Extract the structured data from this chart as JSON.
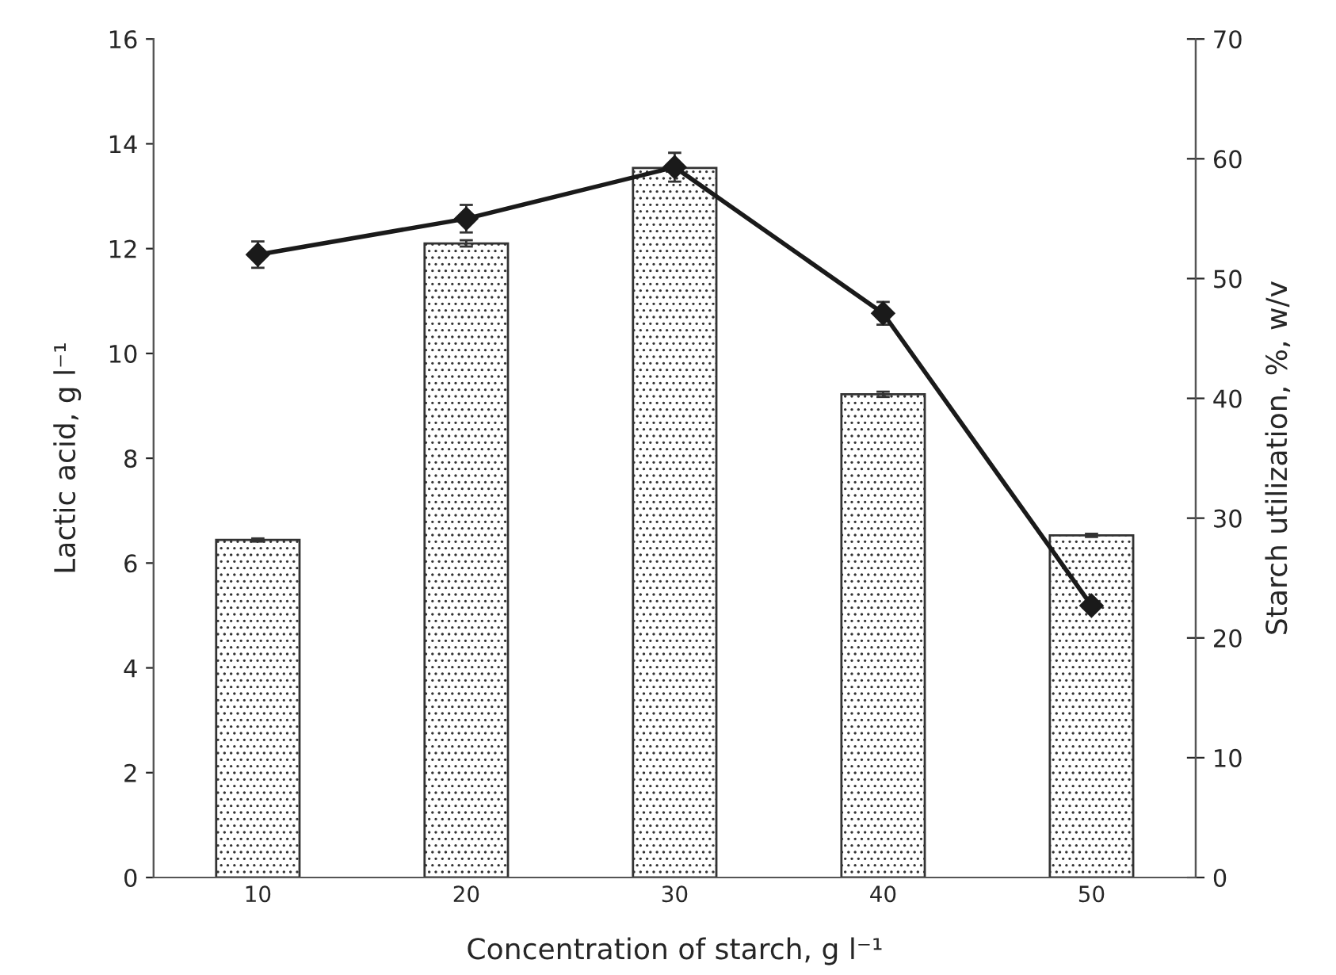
{
  "chart_data": {
    "type": "bar",
    "xlabel": "Concentration of starch, g l⁻¹",
    "ylabel": "Lactic acid, g l⁻¹",
    "y2label": "Starch utilization, %, w/v",
    "categories": [
      "10",
      "20",
      "30",
      "40",
      "50"
    ],
    "series": [
      {
        "color": "#333333",
        "values": [
          6.44,
          12.1,
          13.54,
          9.22,
          6.53
        ],
        "errors": [
          0.03,
          0.06,
          null,
          0.05,
          0.03
        ]
      },
      {
        "type": "line",
        "axis": "y2",
        "color": "#1a1a1a",
        "marker": "diamond",
        "values": [
          52.0,
          55.0,
          59.3,
          47.1,
          22.7
        ],
        "errors": [
          1.1,
          1.15,
          1.2,
          0.95,
          null
        ]
      }
    ],
    "ylim": [
      0,
      16
    ],
    "yticks": [
      0,
      2,
      4,
      6,
      8,
      10,
      12,
      14,
      16
    ],
    "y2lim": [
      0,
      70
    ],
    "y2ticks": [
      0,
      10,
      20,
      30,
      40,
      50,
      60,
      70
    ],
    "grid": false,
    "legend": false
  }
}
